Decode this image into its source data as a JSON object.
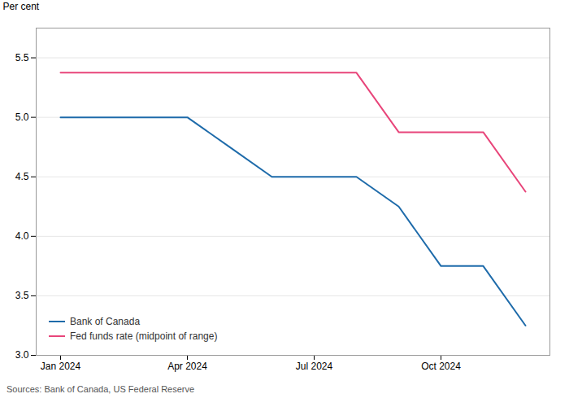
{
  "chart_data": {
    "type": "line",
    "categories": [
      "Jan 2024",
      null,
      null,
      "Apr 2024",
      null,
      null,
      "Jul 2024",
      null,
      null,
      "Oct 2024",
      null,
      null
    ],
    "series": [
      {
        "name": "Bank of Canada",
        "color": "#1e6baa",
        "values": [
          5.0,
          5.0,
          5.0,
          5.0,
          4.75,
          4.5,
          4.5,
          4.5,
          4.25,
          3.75,
          3.75,
          3.25
        ]
      },
      {
        "name": "Fed funds rate (midpoint of range)",
        "color": "#e8457a",
        "values": [
          5.375,
          5.375,
          5.375,
          5.375,
          5.375,
          5.375,
          5.375,
          5.375,
          4.875,
          4.875,
          4.875,
          4.375
        ]
      }
    ],
    "ylabel": "Per cent",
    "source": "Sources: Bank of Canada, US Federal Reserve",
    "ylim": [
      3.0,
      5.75
    ],
    "yticks": [
      {
        "value": 3.0,
        "label": "3.0"
      },
      3.5,
      {
        "value": 4.0,
        "label": "4.0"
      },
      4.5,
      {
        "value": 5.0,
        "label": "5.0"
      },
      5.5
    ],
    "grid": true,
    "legend": "lower left"
  }
}
